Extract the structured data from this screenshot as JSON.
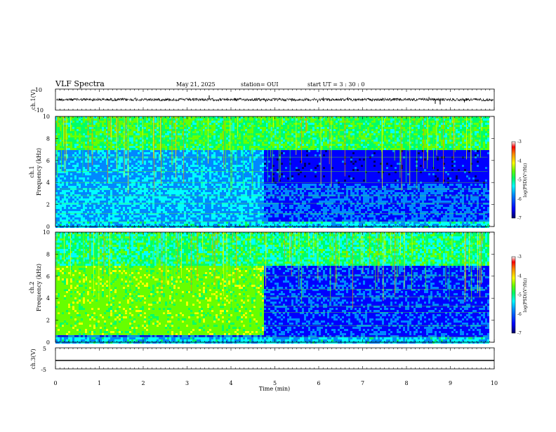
{
  "header": {
    "title": "VLF Spectra",
    "date": "May 21, 2025",
    "station": "station= OUI",
    "start": "start  UT  =   3  : 30 : 0"
  },
  "chart_data": [
    {
      "type": "line",
      "panel": "ch1-waveform",
      "ylabel": "ch.1(V)",
      "ylim": [
        -10,
        10
      ],
      "yticks": [
        "10",
        "-10"
      ],
      "xlim": [
        0,
        10
      ],
      "series": [
        {
          "values_note_x": [
            0,
            10
          ],
          "level": 0
        }
      ]
    },
    {
      "type": "heatmap",
      "panel": "ch1-spectrogram",
      "ylabel": "ch.1\nFrequency (kHz)",
      "ylabel_lines": [
        "ch.1",
        "Frequency (kHz)"
      ],
      "ylim": [
        0,
        10
      ],
      "yticks": [
        "0",
        "2",
        "4",
        "6",
        "8",
        "10"
      ],
      "xlim": [
        0,
        9.85
      ],
      "regime_change_min": 4.72,
      "colorbar": {
        "label": "log(PSD)(V²/Hz)",
        "range": [
          -7,
          -3
        ],
        "ticks": [
          "-3",
          "-4",
          "-5",
          "-6",
          "-7"
        ]
      }
    },
    {
      "type": "heatmap",
      "panel": "ch2-spectrogram",
      "ylabel_lines": [
        "ch.2",
        "Frequency (kHz)"
      ],
      "ylim": [
        0,
        10
      ],
      "yticks": [
        "0",
        "2",
        "4",
        "6",
        "8",
        "10"
      ],
      "xlim": [
        0,
        9.85
      ],
      "regime_change_min": 4.72,
      "colorbar": {
        "label": "log(PSD)(V²/Hz)",
        "range": [
          -7,
          -3
        ],
        "ticks": [
          "-3",
          "-4",
          "-5",
          "-6",
          "-7"
        ]
      }
    },
    {
      "type": "line",
      "panel": "ch3-waveform",
      "ylabel": "ch.3(V)",
      "ylim": [
        -5,
        5
      ],
      "yticks": [
        "5",
        "-5"
      ],
      "xlim": [
        0,
        10
      ],
      "series": [
        {
          "level": -1
        }
      ]
    }
  ],
  "xaxis": {
    "label": "Time (min)",
    "ticks": [
      "0",
      "1",
      "2",
      "3",
      "4",
      "5",
      "6",
      "7",
      "8",
      "9",
      "10"
    ],
    "range": [
      0,
      10
    ]
  },
  "colors": {
    "background": "#ffffff",
    "axis": "#000000",
    "colormap": [
      "#000066",
      "#0000ff",
      "#0088ff",
      "#00ffff",
      "#00ff66",
      "#66ff00",
      "#ffff00",
      "#ff8800",
      "#ff0000",
      "#ffffff"
    ]
  }
}
